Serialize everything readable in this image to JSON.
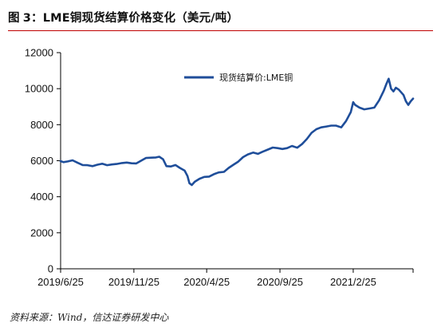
{
  "header": {
    "prefix": "图",
    "number": "3：",
    "title": "LME铜现货结算价格变化（美元/吨）"
  },
  "source": "资料来源：Wind，信达证券研发中心",
  "colors": {
    "series": "#1f4e9a",
    "axis": "#000000",
    "header_rule": "#c00000"
  },
  "chart_data": {
    "type": "line",
    "xlabel": "",
    "ylabel": "",
    "ylim": [
      0,
      12000
    ],
    "yticks": [
      0,
      2000,
      4000,
      6000,
      8000,
      10000,
      12000
    ],
    "xlim": [
      "2019-06-25",
      "2021-06-30"
    ],
    "xticks": [
      "2019/6/25",
      "2019/11/25",
      "2020/4/25",
      "2020/9/25",
      "2021/2/25"
    ],
    "grid": false,
    "legend": {
      "position": "top-right",
      "entries": [
        "现货结算价:LME铜"
      ]
    },
    "series": [
      {
        "name": "现货结算价:LME铜",
        "x": [
          "2019-06-25",
          "2019-07-01",
          "2019-07-10",
          "2019-07-20",
          "2019-07-31",
          "2019-08-10",
          "2019-08-20",
          "2019-08-31",
          "2019-09-10",
          "2019-09-20",
          "2019-09-30",
          "2019-10-10",
          "2019-10-20",
          "2019-10-31",
          "2019-11-10",
          "2019-11-20",
          "2019-11-30",
          "2019-12-10",
          "2019-12-20",
          "2019-12-31",
          "2020-01-10",
          "2020-01-17",
          "2020-01-25",
          "2020-02-01",
          "2020-02-10",
          "2020-02-20",
          "2020-02-29",
          "2020-03-10",
          "2020-03-16",
          "2020-03-20",
          "2020-03-25",
          "2020-03-31",
          "2020-04-10",
          "2020-04-20",
          "2020-04-30",
          "2020-05-10",
          "2020-05-20",
          "2020-05-31",
          "2020-06-10",
          "2020-06-20",
          "2020-06-30",
          "2020-07-10",
          "2020-07-20",
          "2020-07-31",
          "2020-08-10",
          "2020-08-20",
          "2020-08-31",
          "2020-09-10",
          "2020-09-20",
          "2020-09-30",
          "2020-10-10",
          "2020-10-20",
          "2020-10-31",
          "2020-11-10",
          "2020-11-20",
          "2020-11-30",
          "2020-12-10",
          "2020-12-20",
          "2020-12-31",
          "2021-01-10",
          "2021-01-20",
          "2021-01-31",
          "2021-02-10",
          "2021-02-20",
          "2021-02-25",
          "2021-03-01",
          "2021-03-10",
          "2021-03-20",
          "2021-03-31",
          "2021-04-10",
          "2021-04-20",
          "2021-04-30",
          "2021-05-05",
          "2021-05-10",
          "2021-05-15",
          "2021-05-20",
          "2021-05-25",
          "2021-05-31",
          "2021-06-05",
          "2021-06-10",
          "2021-06-15",
          "2021-06-20",
          "2021-06-25",
          "2021-06-30"
        ],
        "y": [
          5980,
          5920,
          5960,
          6020,
          5880,
          5760,
          5750,
          5700,
          5780,
          5830,
          5750,
          5790,
          5820,
          5870,
          5900,
          5860,
          5850,
          6000,
          6150,
          6170,
          6180,
          6220,
          6080,
          5700,
          5680,
          5760,
          5600,
          5450,
          5150,
          4750,
          4650,
          4830,
          5000,
          5100,
          5120,
          5250,
          5350,
          5380,
          5600,
          5780,
          5950,
          6200,
          6350,
          6450,
          6380,
          6500,
          6620,
          6730,
          6700,
          6650,
          6700,
          6820,
          6720,
          6920,
          7200,
          7550,
          7750,
          7850,
          7900,
          7950,
          7950,
          7850,
          8200,
          8700,
          9250,
          9100,
          8950,
          8850,
          8900,
          8950,
          9350,
          9900,
          10250,
          10550,
          10000,
          9850,
          10050,
          9950,
          9800,
          9650,
          9300,
          9100,
          9300,
          9450
        ]
      }
    ]
  }
}
